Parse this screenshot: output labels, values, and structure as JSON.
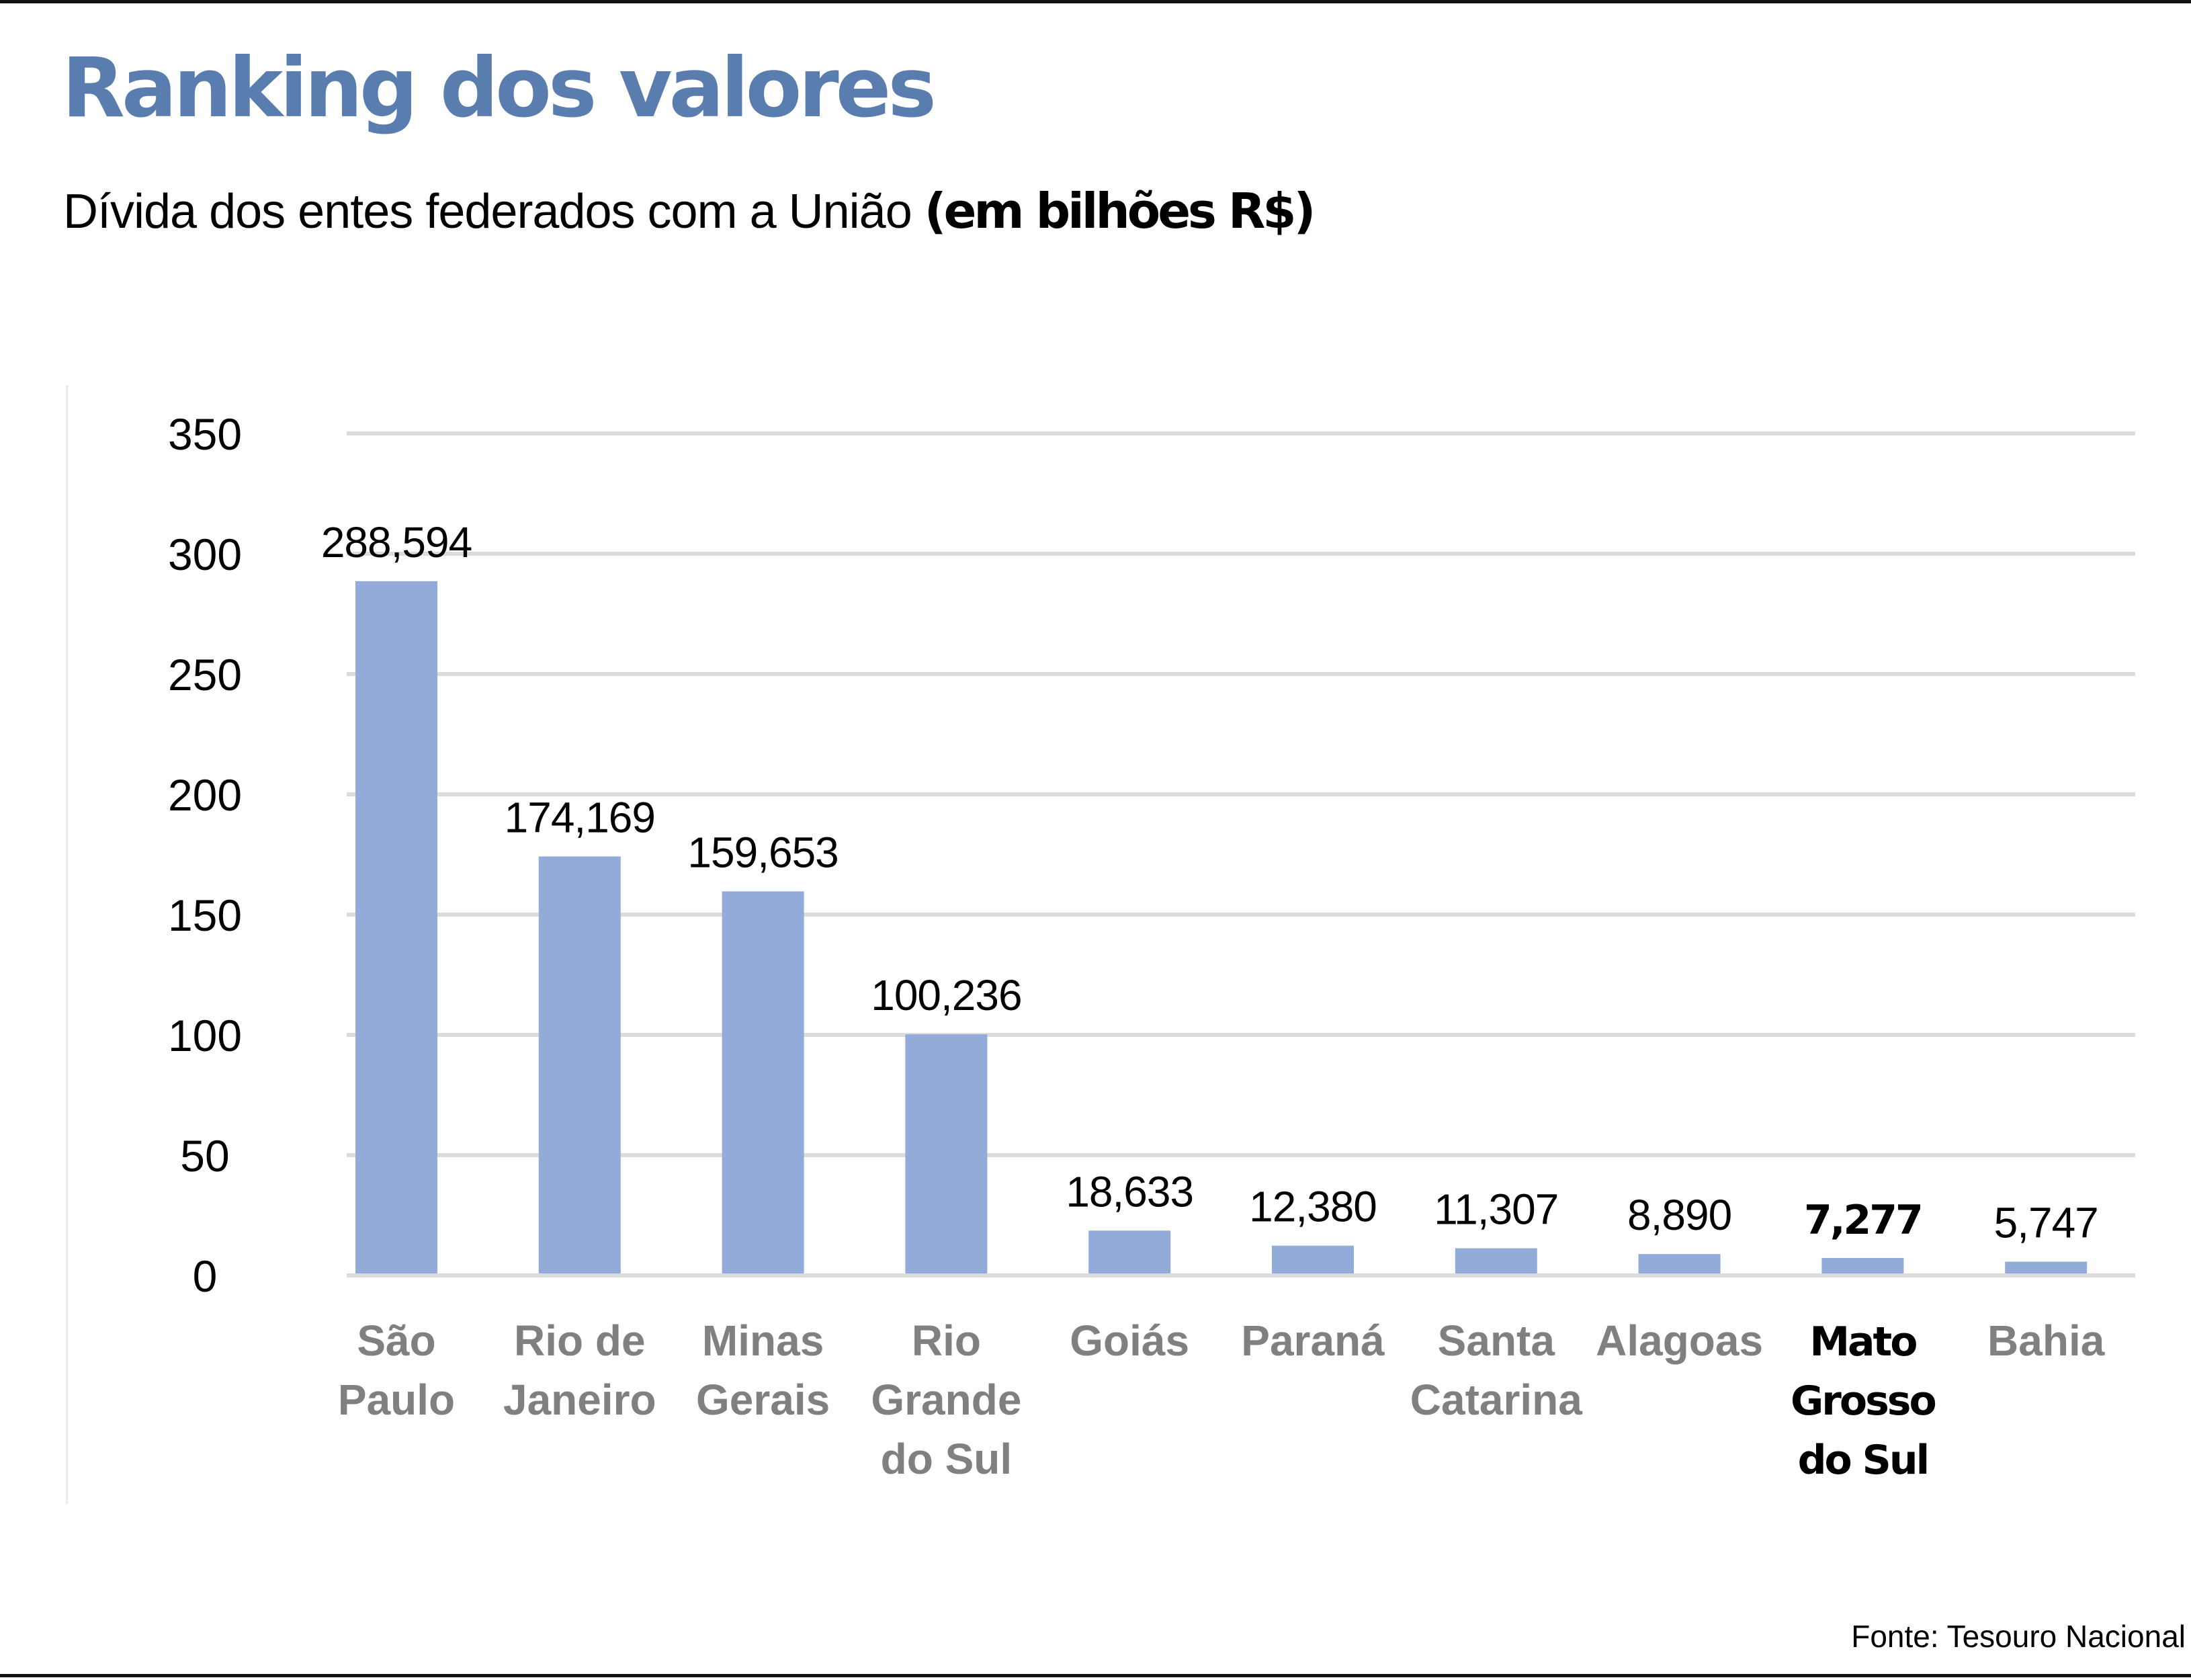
{
  "header": {
    "title": "Ranking dos valores",
    "subtitle_main": "Dívida dos entes federados com a União ",
    "subtitle_unit": "(em bilhões R$)"
  },
  "footer": {
    "source": "Fonte: Tesouro Nacional"
  },
  "colors": {
    "title": "#5a7db0",
    "bar": "#92abd9",
    "grid": "#dcdcdc",
    "category_label": "#808080",
    "highlight_label": "#000000"
  },
  "chart_data": {
    "type": "bar",
    "title": "Ranking dos valores",
    "subtitle": "Dívida dos entes federados com a União (em bilhões R$)",
    "xlabel": "",
    "ylabel": "",
    "ylim": [
      0,
      350
    ],
    "grid": true,
    "legend": "none",
    "yticks": [
      "0",
      "50",
      "100",
      "150",
      "200",
      "250",
      "300",
      "350"
    ],
    "ytick_values": [
      0,
      50,
      100,
      150,
      200,
      250,
      300,
      350
    ],
    "categories": [
      [
        "São",
        "Paulo"
      ],
      [
        "Rio de",
        "Janeiro"
      ],
      [
        "Minas",
        "Gerais"
      ],
      [
        "Rio",
        "Grande",
        "do Sul"
      ],
      [
        "Goiás"
      ],
      [
        "Paraná"
      ],
      [
        "Santa",
        "Catarina"
      ],
      [
        "Alagoas"
      ],
      [
        "Mato",
        "Grosso",
        "do Sul"
      ],
      [
        "Bahia"
      ]
    ],
    "values": [
      288.594,
      174.169,
      159.653,
      100.236,
      18.633,
      12.38,
      11.307,
      8.89,
      7.277,
      5.747
    ],
    "value_labels": [
      "288,594",
      "174,169",
      "159,653",
      "100,236",
      "18,633",
      "12,380",
      "11,307",
      "8,890",
      "7,277",
      "5,747"
    ],
    "highlighted_index": 8
  }
}
